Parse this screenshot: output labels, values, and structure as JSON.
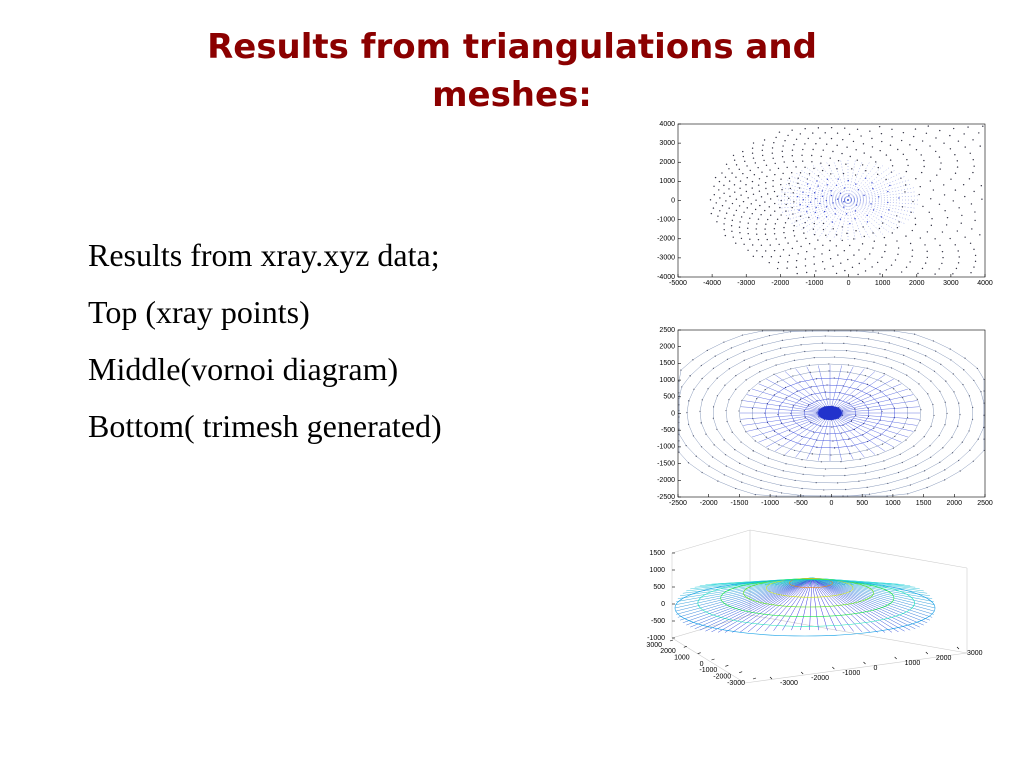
{
  "title": "Results from triangulations and meshes:",
  "body": [
    "Results from xray.xyz  data;",
    "Top (xray points)",
    "Middle(vornoi diagram)",
    "Bottom( trimesh generated)"
  ],
  "figures": [
    {
      "type": "scatter",
      "xlim": [
        -5000,
        4000
      ],
      "ylim": [
        -4000,
        4000
      ],
      "xticks": [
        -5000,
        -4000,
        -3000,
        -2000,
        -1000,
        0,
        1000,
        2000,
        3000,
        4000
      ],
      "yticks": [
        -4000,
        -3000,
        -2000,
        -1000,
        0,
        1000,
        2000,
        3000,
        4000
      ]
    },
    {
      "type": "voronoi",
      "xlim": [
        -2500,
        2500
      ],
      "ylim": [
        -2500,
        2500
      ],
      "xticks": [
        -2500,
        -2000,
        -1500,
        -1000,
        -500,
        0,
        500,
        1000,
        1500,
        2000,
        2500
      ],
      "yticks": [
        -2500,
        -2000,
        -1500,
        -1000,
        -500,
        0,
        500,
        1000,
        1500,
        2000,
        2500
      ]
    },
    {
      "type": "surface",
      "zlim": [
        -1000,
        1500
      ],
      "zticks": [
        -1000,
        -500,
        0,
        500,
        1000,
        1500
      ],
      "xlim": [
        -3000,
        3000
      ],
      "xticks": [
        -3000,
        -2000,
        -1000,
        0,
        1000,
        2000,
        3000
      ],
      "ylim": [
        -3000,
        3000
      ],
      "yticks": [
        -3000,
        -2000,
        -1000,
        0,
        1000,
        2000,
        3000
      ]
    }
  ]
}
